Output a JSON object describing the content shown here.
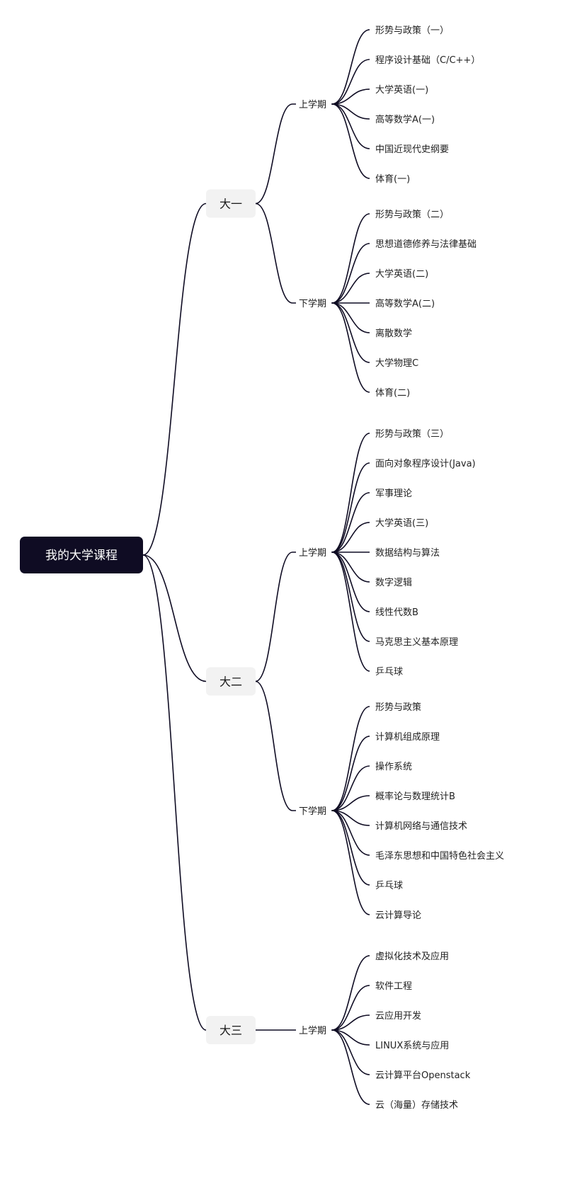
{
  "root": {
    "label": "我的大学课程"
  },
  "years": [
    {
      "label": "大一",
      "terms": [
        {
          "label": "上学期",
          "courses": [
            "形势与政策（一）",
            "程序设计基础（C/C++）",
            "大学英语(一)",
            "高等数学A(一)",
            "中国近现代史纲要",
            "体育(一)"
          ]
        },
        {
          "label": "下学期",
          "courses": [
            "形势与政策（二）",
            "思想道德修养与法律基础",
            "大学英语(二)",
            "高等数学A(二)",
            "离散数学",
            "大学物理C",
            "体育(二)"
          ]
        }
      ]
    },
    {
      "label": "大二",
      "terms": [
        {
          "label": "上学期",
          "courses": [
            "形势与政策（三）",
            "面向对象程序设计(Java)",
            "军事理论",
            "大学英语(三)",
            "数据结构与算法",
            "数字逻辑",
            "线性代数B",
            "马克思主义基本原理",
            "乒乓球"
          ]
        },
        {
          "label": "下学期",
          "courses": [
            "形势与政策",
            "计算机组成原理",
            "操作系统",
            "概率论与数理统计B",
            "计算机网络与通信技术",
            "毛泽东思想和中国特色社会主义",
            "乒乓球",
            "云计算导论"
          ]
        }
      ]
    },
    {
      "label": "大三",
      "terms": [
        {
          "label": "上学期",
          "courses": [
            "虚拟化技术及应用",
            "软件工程",
            "云应用开发",
            "LINUX系统与应用",
            "云计算平台Openstack",
            "云（海量）存储技术"
          ]
        }
      ]
    }
  ]
}
